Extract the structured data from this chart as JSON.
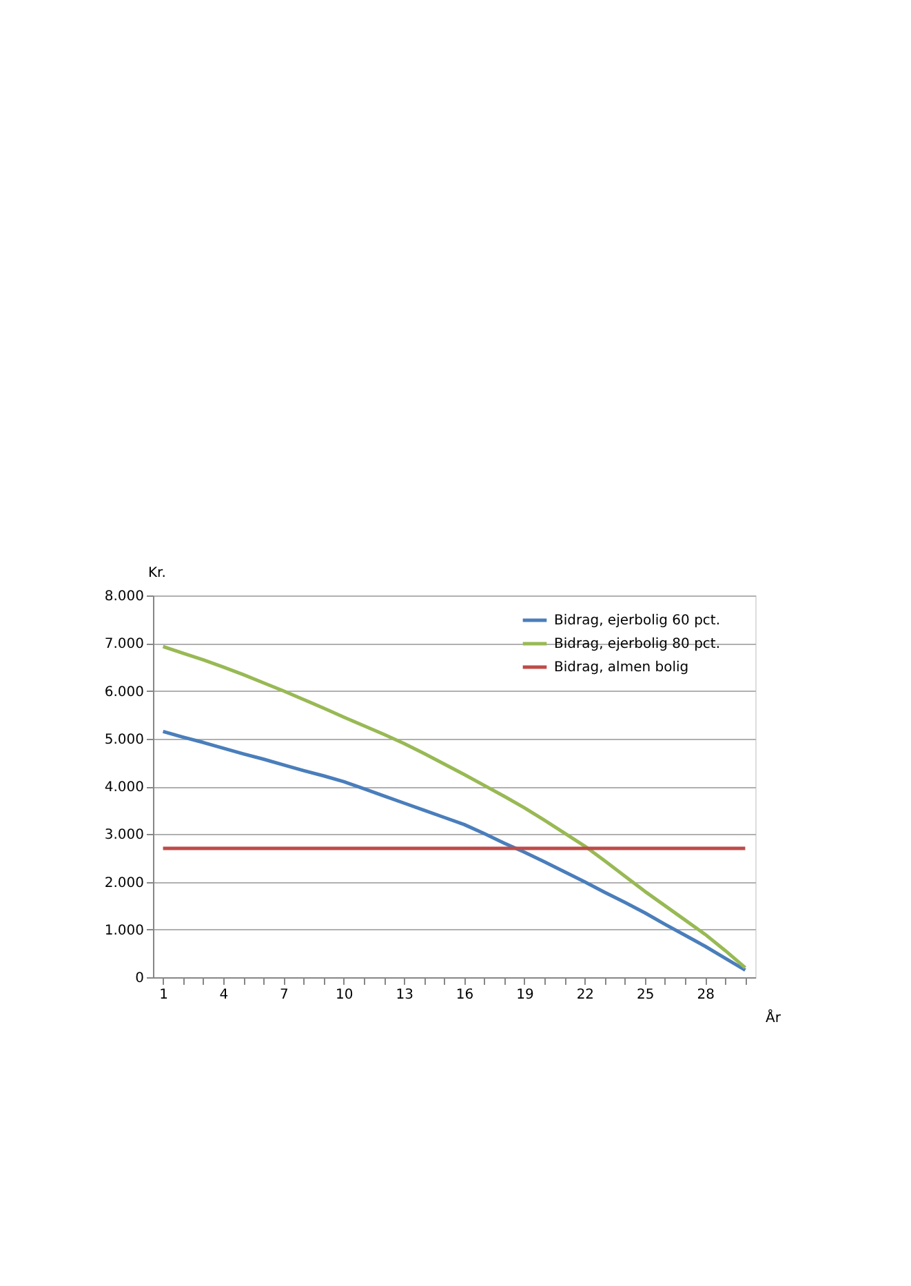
{
  "chart_data": {
    "type": "line",
    "ylabel": "Kr.",
    "xlabel": "År",
    "categories": [
      "1",
      null,
      null,
      "4",
      null,
      null,
      "7",
      null,
      null,
      "10",
      null,
      null,
      "13",
      null,
      null,
      "16",
      null,
      null,
      "19",
      null,
      null,
      "22",
      null,
      null,
      "25",
      null,
      null,
      "28",
      null,
      null
    ],
    "series": [
      {
        "name": "Bidrag, ejerbolig 60 pct.",
        "color": "#4a7ebb",
        "values": [
          5150,
          5030,
          4920,
          4800,
          4680,
          4570,
          4450,
          4330,
          4220,
          4100,
          3950,
          3800,
          3650,
          3500,
          3350,
          3200,
          3010,
          2810,
          2620,
          2420,
          2210,
          2000,
          1780,
          1570,
          1350,
          1110,
          880,
          650,
          400,
          150
        ]
      },
      {
        "name": "Bidrag, ejerbolig 80 pct.",
        "color": "#98b954",
        "values": [
          6930,
          6790,
          6650,
          6500,
          6340,
          6170,
          6000,
          5820,
          5640,
          5450,
          5270,
          5090,
          4900,
          4690,
          4470,
          4250,
          4020,
          3790,
          3550,
          3290,
          3020,
          2750,
          2440,
          2120,
          1800,
          1500,
          1200,
          900,
          560,
          200
        ]
      },
      {
        "name": "Bidrag, almen bolig",
        "color": "#be4b48",
        "values": [
          2700,
          2700,
          2700,
          2700,
          2700,
          2700,
          2700,
          2700,
          2700,
          2700,
          2700,
          2700,
          2700,
          2700,
          2700,
          2700,
          2700,
          2700,
          2700,
          2700,
          2700,
          2700,
          2700,
          2700,
          2700,
          2700,
          2700,
          2700,
          2700,
          2700
        ]
      }
    ],
    "ylim": [
      0,
      8000
    ],
    "yticks": [
      0,
      {
        "value": 1000,
        "label": "1.000"
      },
      {
        "value": 2000,
        "label": "2.000"
      },
      {
        "value": 3000,
        "label": "3.000"
      },
      {
        "value": 4000,
        "label": "4.000"
      },
      {
        "value": 5000,
        "label": "5.000"
      },
      {
        "value": 6000,
        "label": "6.000"
      },
      {
        "value": 7000,
        "label": "7.000"
      },
      {
        "value": 8000,
        "label": "8.000"
      }
    ],
    "grid": "y",
    "legend": "top right",
    "marker": "none",
    "line_style": "solid"
  }
}
